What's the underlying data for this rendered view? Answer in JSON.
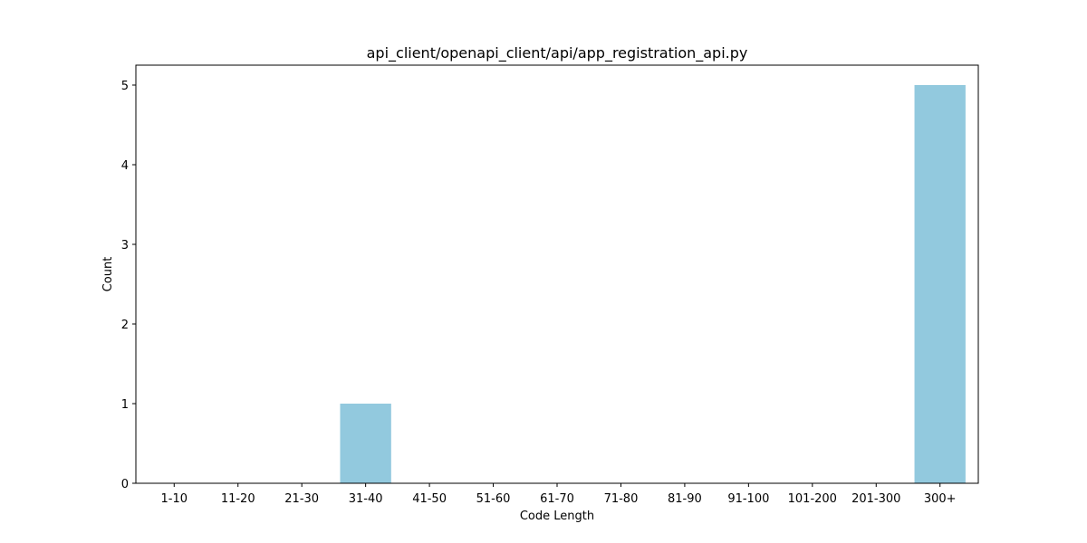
{
  "chart_data": {
    "type": "bar",
    "title": "api_client/openapi_client/api/app_registration_api.py",
    "xlabel": "Code Length",
    "ylabel": "Count",
    "categories": [
      "1-10",
      "11-20",
      "21-30",
      "31-40",
      "41-50",
      "51-60",
      "61-70",
      "71-80",
      "81-90",
      "91-100",
      "101-200",
      "201-300",
      "300+"
    ],
    "values": [
      0,
      0,
      0,
      1,
      0,
      0,
      0,
      0,
      0,
      0,
      0,
      0,
      5
    ],
    "ylim": [
      0,
      5.25
    ],
    "yticks": [
      0,
      1,
      2,
      3,
      4,
      5
    ],
    "bar_color": "#92c9de",
    "grid": false,
    "legend": "none"
  }
}
